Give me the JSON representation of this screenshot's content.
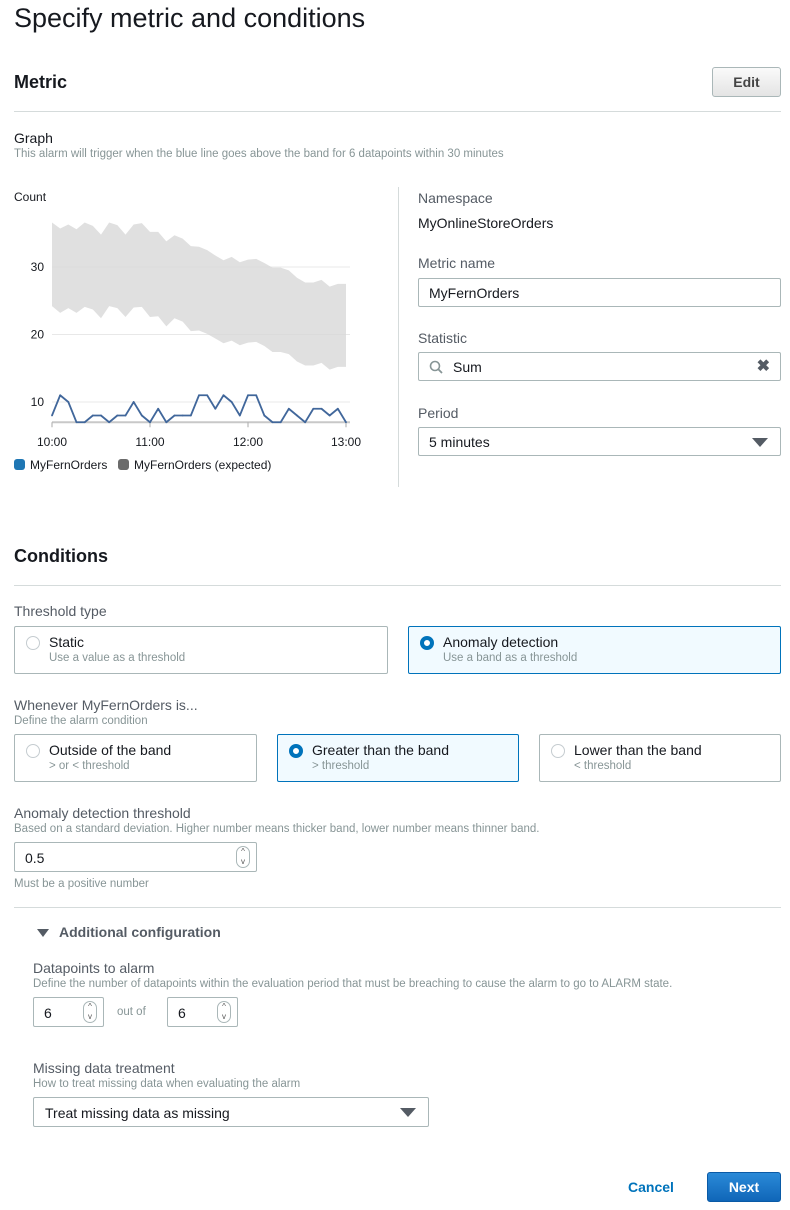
{
  "page_title": "Specify metric and conditions",
  "metric": {
    "heading": "Metric",
    "edit_label": "Edit",
    "graph_label": "Graph",
    "graph_description": "This alarm will trigger when the blue line goes above the band for 6 datapoints within 30 minutes",
    "namespace_label": "Namespace",
    "namespace_value": "MyOnlineStoreOrders",
    "metric_name_label": "Metric name",
    "metric_name_value": "MyFernOrders",
    "statistic_label": "Statistic",
    "statistic_value": "Sum",
    "period_label": "Period",
    "period_value": "5 minutes"
  },
  "chart_data": {
    "type": "line",
    "ylabel": "Count",
    "y_ticks": [
      10,
      20,
      30
    ],
    "ylim": [
      7,
      37
    ],
    "x_ticks": [
      "10:00",
      "11:00",
      "12:00",
      "13:00"
    ],
    "x_start": "10:00",
    "x_end": "13:00",
    "interval_minutes": 5,
    "grid": true,
    "legend_position": "bottom-left",
    "colors": {
      "series": "#41679b",
      "band": "#e0e0e0",
      "legend_series": "#1f77b4",
      "legend_band": "#6b6b6b"
    },
    "series": [
      {
        "name": "MyFernOrders",
        "values": [
          8,
          11,
          10,
          7,
          7,
          8,
          8,
          7,
          8,
          8,
          10,
          8,
          7,
          9,
          7,
          8,
          8,
          8,
          11,
          11,
          9,
          11,
          10,
          8,
          11,
          11,
          8,
          7,
          7,
          9,
          8,
          7,
          9,
          9,
          8,
          9,
          7
        ]
      }
    ],
    "band": {
      "name": "MyFernOrders (expected)",
      "upper": [
        36.6,
        35.7,
        36.3,
        35.6,
        36.6,
        36.1,
        34.8,
        36.6,
        36.2,
        34.8,
        36.3,
        36.5,
        35.2,
        35.2,
        33.8,
        34.7,
        34.2,
        33.1,
        33.0,
        32.5,
        31.7,
        31.0,
        31.5,
        30.7,
        31.1,
        31.2,
        30.6,
        29.9,
        29.9,
        29.5,
        28.4,
        27.7,
        27.7,
        28.1,
        27.1,
        27.5,
        27.5
      ],
      "lower": [
        24.2,
        23.2,
        23.9,
        23.2,
        24.1,
        23.7,
        22.4,
        24.2,
        23.9,
        22.6,
        24.0,
        24.1,
        22.6,
        22.7,
        21.2,
        22.4,
        21.9,
        20.5,
        20.6,
        20.1,
        19.4,
        18.7,
        19.1,
        18.4,
        18.8,
        18.9,
        18.3,
        17.4,
        17.4,
        17.1,
        16.0,
        15.4,
        15.4,
        15.8,
        14.8,
        15.2,
        15.2
      ]
    }
  },
  "conditions": {
    "heading": "Conditions",
    "threshold_type_label": "Threshold type",
    "threshold_options": [
      {
        "title": "Static",
        "desc": "Use a value as a threshold",
        "selected": false
      },
      {
        "title": "Anomaly detection",
        "desc": "Use a band as a threshold",
        "selected": true
      }
    ],
    "whenever_label": "Whenever MyFernOrders is...",
    "whenever_desc": "Define the alarm condition",
    "condition_options": [
      {
        "title": "Outside of the band",
        "desc": "> or < threshold",
        "selected": false
      },
      {
        "title": "Greater than the band",
        "desc": "> threshold",
        "selected": true
      },
      {
        "title": "Lower than the band",
        "desc": "< threshold",
        "selected": false
      }
    ],
    "anomaly_threshold_label": "Anomaly detection threshold",
    "anomaly_threshold_desc": "Based on a standard deviation. Higher number means thicker band, lower number means thinner band.",
    "anomaly_threshold_value": "0.5",
    "anomaly_threshold_hint": "Must be a positive number"
  },
  "additional": {
    "toggle_label": "Additional configuration",
    "datapoints_label": "Datapoints to alarm",
    "datapoints_desc": "Define the number of datapoints within the evaluation period that must be breaching to cause the alarm to go to ALARM state.",
    "datapoints_value": "6",
    "out_of_label": "out of",
    "evaluation_value": "6",
    "missing_label": "Missing data treatment",
    "missing_desc": "How to treat missing data when evaluating the alarm",
    "missing_value": "Treat missing data as missing"
  },
  "footer": {
    "cancel_label": "Cancel",
    "next_label": "Next"
  }
}
